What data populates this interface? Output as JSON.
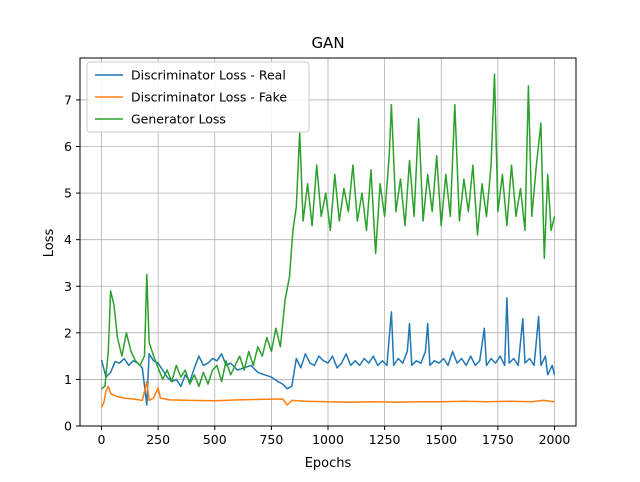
{
  "chart_data": {
    "type": "line",
    "title": "GAN",
    "xlabel": "Epochs",
    "ylabel": "Loss",
    "xlim": [
      -95,
      2095
    ],
    "ylim": [
      0,
      7.9
    ],
    "grid": true,
    "legend_position": "top-left",
    "x_ticks": [
      0,
      250,
      500,
      750,
      1000,
      1250,
      1500,
      1750,
      2000
    ],
    "y_ticks": [
      0,
      1,
      2,
      3,
      4,
      5,
      6,
      7
    ],
    "x_tick_labels": [
      "0",
      "250",
      "500",
      "750",
      "1000",
      "1250",
      "1500",
      "1750",
      "2000"
    ],
    "y_tick_labels": [
      "0",
      "1",
      "2",
      "3",
      "4",
      "5",
      "6",
      "7"
    ],
    "series": [
      {
        "name": "Discriminator Loss - Real",
        "color": "#1f77b4",
        "points": [
          [
            0,
            1.42
          ],
          [
            20,
            1.05
          ],
          [
            40,
            1.15
          ],
          [
            60,
            1.38
          ],
          [
            80,
            1.35
          ],
          [
            100,
            1.45
          ],
          [
            120,
            1.3
          ],
          [
            140,
            1.4
          ],
          [
            160,
            1.35
          ],
          [
            180,
            1.25
          ],
          [
            200,
            0.45
          ],
          [
            210,
            1.55
          ],
          [
            230,
            1.4
          ],
          [
            250,
            1.35
          ],
          [
            270,
            1.2
          ],
          [
            290,
            1.05
          ],
          [
            310,
            0.95
          ],
          [
            330,
            1.0
          ],
          [
            350,
            0.85
          ],
          [
            370,
            1.1
          ],
          [
            390,
            0.95
          ],
          [
            410,
            1.25
          ],
          [
            430,
            1.5
          ],
          [
            450,
            1.3
          ],
          [
            470,
            1.35
          ],
          [
            490,
            1.45
          ],
          [
            510,
            1.4
          ],
          [
            530,
            1.55
          ],
          [
            550,
            1.3
          ],
          [
            570,
            1.35
          ],
          [
            600,
            1.2
          ],
          [
            630,
            1.25
          ],
          [
            660,
            1.3
          ],
          [
            690,
            1.15
          ],
          [
            720,
            1.1
          ],
          [
            750,
            1.05
          ],
          [
            780,
            0.95
          ],
          [
            800,
            0.9
          ],
          [
            820,
            0.8
          ],
          [
            840,
            0.85
          ],
          [
            860,
            1.45
          ],
          [
            880,
            1.25
          ],
          [
            900,
            1.55
          ],
          [
            920,
            1.35
          ],
          [
            940,
            1.3
          ],
          [
            960,
            1.5
          ],
          [
            980,
            1.4
          ],
          [
            1000,
            1.35
          ],
          [
            1020,
            1.5
          ],
          [
            1040,
            1.25
          ],
          [
            1060,
            1.35
          ],
          [
            1080,
            1.55
          ],
          [
            1100,
            1.3
          ],
          [
            1120,
            1.4
          ],
          [
            1140,
            1.3
          ],
          [
            1160,
            1.45
          ],
          [
            1180,
            1.35
          ],
          [
            1200,
            1.5
          ],
          [
            1220,
            1.3
          ],
          [
            1240,
            1.4
          ],
          [
            1260,
            1.3
          ],
          [
            1280,
            2.45
          ],
          [
            1290,
            1.3
          ],
          [
            1310,
            1.45
          ],
          [
            1330,
            1.35
          ],
          [
            1350,
            1.6
          ],
          [
            1360,
            2.2
          ],
          [
            1370,
            1.3
          ],
          [
            1390,
            1.4
          ],
          [
            1410,
            1.35
          ],
          [
            1430,
            1.6
          ],
          [
            1440,
            2.2
          ],
          [
            1450,
            1.3
          ],
          [
            1470,
            1.4
          ],
          [
            1490,
            1.35
          ],
          [
            1510,
            1.45
          ],
          [
            1530,
            1.3
          ],
          [
            1550,
            1.6
          ],
          [
            1570,
            1.35
          ],
          [
            1590,
            1.45
          ],
          [
            1610,
            1.3
          ],
          [
            1630,
            1.5
          ],
          [
            1650,
            1.3
          ],
          [
            1670,
            1.4
          ],
          [
            1690,
            2.1
          ],
          [
            1700,
            1.3
          ],
          [
            1720,
            1.45
          ],
          [
            1740,
            1.35
          ],
          [
            1760,
            1.5
          ],
          [
            1780,
            1.3
          ],
          [
            1790,
            2.75
          ],
          [
            1800,
            1.35
          ],
          [
            1820,
            1.45
          ],
          [
            1840,
            1.3
          ],
          [
            1860,
            2.3
          ],
          [
            1870,
            1.35
          ],
          [
            1890,
            1.45
          ],
          [
            1910,
            1.3
          ],
          [
            1930,
            2.35
          ],
          [
            1940,
            1.3
          ],
          [
            1960,
            1.5
          ],
          [
            1970,
            1.1
          ],
          [
            1990,
            1.3
          ],
          [
            2000,
            1.1
          ]
        ]
      },
      {
        "name": "Discriminator Loss - Fake",
        "color": "#ff7f0e",
        "points": [
          [
            0,
            0.4
          ],
          [
            10,
            0.5
          ],
          [
            20,
            0.75
          ],
          [
            30,
            0.85
          ],
          [
            40,
            0.7
          ],
          [
            60,
            0.65
          ],
          [
            80,
            0.62
          ],
          [
            100,
            0.6
          ],
          [
            140,
            0.58
          ],
          [
            180,
            0.55
          ],
          [
            200,
            0.95
          ],
          [
            210,
            0.55
          ],
          [
            230,
            0.6
          ],
          [
            250,
            0.82
          ],
          [
            260,
            0.6
          ],
          [
            300,
            0.56
          ],
          [
            400,
            0.55
          ],
          [
            500,
            0.54
          ],
          [
            600,
            0.56
          ],
          [
            700,
            0.57
          ],
          [
            800,
            0.58
          ],
          [
            820,
            0.45
          ],
          [
            840,
            0.55
          ],
          [
            900,
            0.53
          ],
          [
            1000,
            0.52
          ],
          [
            1100,
            0.51
          ],
          [
            1200,
            0.52
          ],
          [
            1300,
            0.51
          ],
          [
            1400,
            0.52
          ],
          [
            1500,
            0.52
          ],
          [
            1600,
            0.53
          ],
          [
            1700,
            0.52
          ],
          [
            1800,
            0.53
          ],
          [
            1900,
            0.52
          ],
          [
            1950,
            0.55
          ],
          [
            2000,
            0.52
          ]
        ]
      },
      {
        "name": "Generator Loss",
        "color": "#2ca02c",
        "points": [
          [
            0,
            0.8
          ],
          [
            15,
            0.85
          ],
          [
            30,
            1.6
          ],
          [
            40,
            2.9
          ],
          [
            55,
            2.6
          ],
          [
            70,
            1.9
          ],
          [
            90,
            1.5
          ],
          [
            110,
            2.0
          ],
          [
            130,
            1.6
          ],
          [
            150,
            1.4
          ],
          [
            170,
            1.3
          ],
          [
            190,
            1.5
          ],
          [
            200,
            3.25
          ],
          [
            210,
            1.8
          ],
          [
            230,
            1.5
          ],
          [
            250,
            1.25
          ],
          [
            270,
            1.0
          ],
          [
            290,
            1.2
          ],
          [
            310,
            0.95
          ],
          [
            330,
            1.3
          ],
          [
            350,
            1.05
          ],
          [
            370,
            1.2
          ],
          [
            390,
            0.9
          ],
          [
            410,
            1.1
          ],
          [
            430,
            0.85
          ],
          [
            450,
            1.15
          ],
          [
            470,
            0.9
          ],
          [
            490,
            1.2
          ],
          [
            510,
            1.3
          ],
          [
            530,
            0.95
          ],
          [
            550,
            1.4
          ],
          [
            570,
            1.1
          ],
          [
            590,
            1.3
          ],
          [
            610,
            1.5
          ],
          [
            630,
            1.2
          ],
          [
            650,
            1.6
          ],
          [
            670,
            1.3
          ],
          [
            690,
            1.7
          ],
          [
            710,
            1.5
          ],
          [
            730,
            1.9
          ],
          [
            750,
            1.6
          ],
          [
            770,
            2.1
          ],
          [
            790,
            1.7
          ],
          [
            810,
            2.7
          ],
          [
            830,
            3.2
          ],
          [
            845,
            4.2
          ],
          [
            860,
            4.7
          ],
          [
            875,
            6.3
          ],
          [
            890,
            4.4
          ],
          [
            910,
            5.2
          ],
          [
            930,
            4.3
          ],
          [
            950,
            5.6
          ],
          [
            970,
            4.5
          ],
          [
            990,
            5.0
          ],
          [
            1010,
            4.2
          ],
          [
            1030,
            5.4
          ],
          [
            1050,
            4.4
          ],
          [
            1070,
            5.1
          ],
          [
            1090,
            4.6
          ],
          [
            1110,
            5.6
          ],
          [
            1130,
            4.4
          ],
          [
            1150,
            5.0
          ],
          [
            1170,
            4.2
          ],
          [
            1190,
            5.5
          ],
          [
            1210,
            3.7
          ],
          [
            1230,
            5.2
          ],
          [
            1250,
            4.5
          ],
          [
            1270,
            5.8
          ],
          [
            1280,
            6.9
          ],
          [
            1300,
            4.6
          ],
          [
            1320,
            5.3
          ],
          [
            1340,
            4.3
          ],
          [
            1360,
            5.7
          ],
          [
            1380,
            4.5
          ],
          [
            1400,
            6.6
          ],
          [
            1420,
            4.4
          ],
          [
            1440,
            5.4
          ],
          [
            1460,
            4.6
          ],
          [
            1480,
            5.8
          ],
          [
            1500,
            4.3
          ],
          [
            1520,
            5.4
          ],
          [
            1540,
            4.5
          ],
          [
            1560,
            6.9
          ],
          [
            1580,
            4.4
          ],
          [
            1600,
            5.3
          ],
          [
            1620,
            4.6
          ],
          [
            1640,
            5.6
          ],
          [
            1660,
            4.1
          ],
          [
            1680,
            5.2
          ],
          [
            1700,
            4.5
          ],
          [
            1720,
            5.6
          ],
          [
            1735,
            7.55
          ],
          [
            1750,
            4.6
          ],
          [
            1770,
            5.4
          ],
          [
            1790,
            4.3
          ],
          [
            1810,
            5.6
          ],
          [
            1830,
            4.5
          ],
          [
            1850,
            5.1
          ],
          [
            1870,
            4.2
          ],
          [
            1885,
            7.3
          ],
          [
            1900,
            4.5
          ],
          [
            1920,
            5.6
          ],
          [
            1940,
            6.5
          ],
          [
            1955,
            3.6
          ],
          [
            1970,
            5.4
          ],
          [
            1985,
            4.2
          ],
          [
            2000,
            4.5
          ]
        ]
      }
    ]
  }
}
